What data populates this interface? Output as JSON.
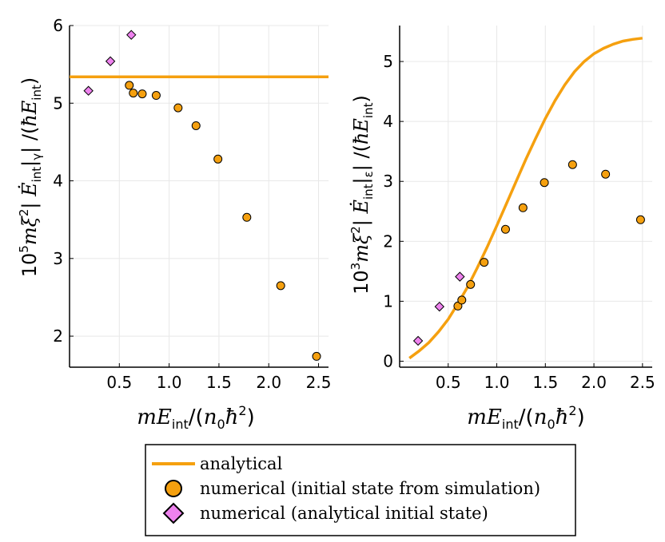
{
  "chart_data": [
    {
      "type": "scatter",
      "xlabel": "mE_int/(n0 ħ^2)",
      "ylabel": "10^5 m ξ^2 |Ė_int|_γ| / (ħ E_int)",
      "xlim": [
        0.0,
        2.6
      ],
      "ylim": [
        1.6,
        6.0
      ],
      "x_ticks": [
        "0.5",
        "1.0",
        "1.5",
        "2.0",
        "2.5"
      ],
      "y_ticks": [
        "2",
        "3",
        "4",
        "5",
        "6"
      ],
      "grid": true,
      "series": [
        {
          "name": "analytical",
          "kind": "line",
          "x": [
            0.0,
            2.6
          ],
          "y": [
            5.34,
            5.34
          ]
        },
        {
          "name": "numerical (initial state from simulation)",
          "kind": "circle",
          "x": [
            0.6,
            0.64,
            0.73,
            0.87,
            1.09,
            1.27,
            1.49,
            1.78,
            2.12,
            2.48
          ],
          "y": [
            5.23,
            5.13,
            5.12,
            5.1,
            4.94,
            4.71,
            4.28,
            3.53,
            2.65,
            1.74
          ]
        },
        {
          "name": "numerical (analytical initial state)",
          "kind": "diamond",
          "x": [
            0.19,
            0.41,
            0.62
          ],
          "y": [
            5.16,
            5.54,
            5.88
          ]
        }
      ]
    },
    {
      "type": "scatter",
      "xlabel": "mE_int/(n0 ħ^2)",
      "ylabel": "10^3 m ξ^2 |Ė_int|_ε| / (ħ E_int)",
      "xlim": [
        0.0,
        2.6
      ],
      "ylim": [
        -0.1,
        5.6
      ],
      "x_ticks": [
        "0.5",
        "1.0",
        "1.5",
        "2.0",
        "2.5"
      ],
      "y_ticks": [
        "0",
        "1",
        "2",
        "3",
        "4",
        "5"
      ],
      "grid": true,
      "series": [
        {
          "name": "analytical",
          "kind": "line",
          "x": [
            0.1,
            0.2,
            0.3,
            0.4,
            0.5,
            0.6,
            0.7,
            0.8,
            0.9,
            1.0,
            1.1,
            1.2,
            1.3,
            1.4,
            1.5,
            1.6,
            1.7,
            1.8,
            1.9,
            2.0,
            2.1,
            2.2,
            2.3,
            2.4,
            2.5
          ],
          "y": [
            0.05,
            0.17,
            0.31,
            0.49,
            0.7,
            0.96,
            1.24,
            1.56,
            1.9,
            2.26,
            2.63,
            3.0,
            3.37,
            3.72,
            4.05,
            4.35,
            4.61,
            4.83,
            5.0,
            5.13,
            5.22,
            5.29,
            5.34,
            5.37,
            5.39
          ]
        },
        {
          "name": "numerical (initial state from simulation)",
          "kind": "circle",
          "x": [
            0.6,
            0.64,
            0.73,
            0.87,
            1.09,
            1.27,
            1.49,
            1.78,
            2.12,
            2.48
          ],
          "y": [
            0.92,
            1.02,
            1.28,
            1.65,
            2.2,
            2.56,
            2.98,
            3.28,
            3.12,
            2.36
          ]
        },
        {
          "name": "numerical (analytical initial state)",
          "kind": "diamond",
          "x": [
            0.19,
            0.41,
            0.62
          ],
          "y": [
            0.34,
            0.91,
            1.41
          ]
        }
      ]
    }
  ],
  "legend": {
    "position": "bottom-center",
    "entries": [
      "analytical",
      "numerical (initial state from simulation)",
      "numerical (analytical initial state)"
    ]
  },
  "colors": {
    "line": "#F5A00F",
    "circle": "#F5A00F",
    "diamond": "#EE82EE",
    "grid": "#e8e8e8"
  }
}
